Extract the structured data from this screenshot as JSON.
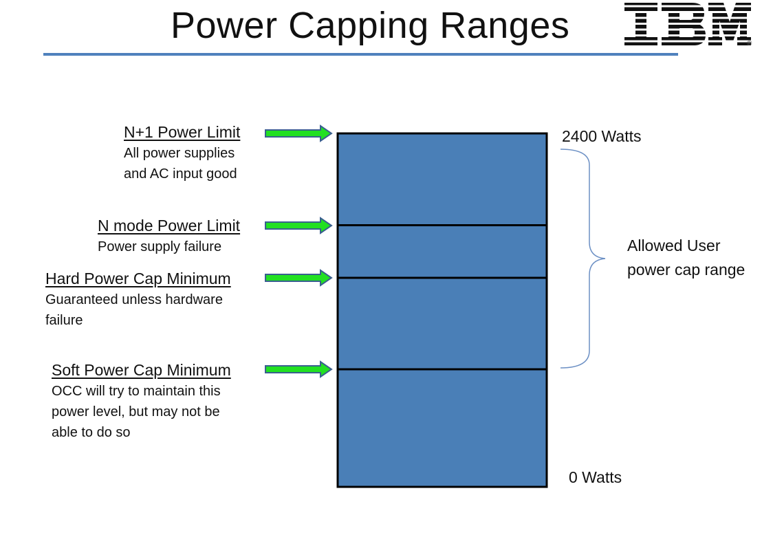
{
  "title": "Power Capping Ranges",
  "logo": {
    "text": "IBM",
    "registered": "®"
  },
  "colors": {
    "bar_fill": "#4a7fb7",
    "arrow_green": "#22e022",
    "arrow_outline": "#3a5f8f",
    "brace": "#6b8fc4",
    "rule": "#4f81bd"
  },
  "levels": [
    {
      "heading": "N+1 Power Limit",
      "lines": [
        "All power supplies",
        "and AC input good"
      ]
    },
    {
      "heading": "N mode Power Limit",
      "lines": [
        "Power supply failure"
      ]
    },
    {
      "heading": "Hard Power Cap Minimum",
      "lines": [
        "Guaranteed unless hardware",
        "failure"
      ]
    },
    {
      "heading": "Soft Power Cap Minimum",
      "lines": [
        "OCC will try to maintain this",
        "power level, but may not be",
        "able to do so"
      ]
    }
  ],
  "scale": {
    "top_label": "2400 Watts",
    "bottom_label": "0 Watts"
  },
  "range": {
    "lines": [
      "Allowed User",
      "power cap range"
    ]
  }
}
